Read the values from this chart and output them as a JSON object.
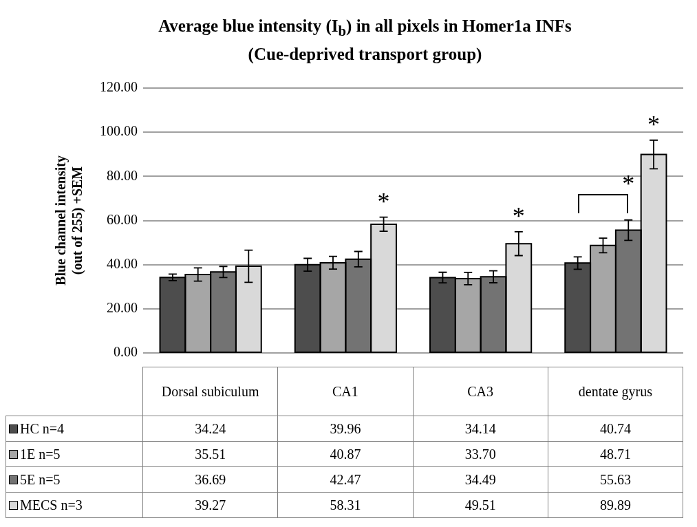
{
  "chart_data": {
    "type": "bar",
    "title": "Average blue intensity (I$_{b}$) in all pixels in Homer1a INFs",
    "subtitle": "(Cue-deprived transport group)",
    "ylabel": "Blue channel intensity (out of 255) +SEM",
    "categories": [
      "Dorsal subiculum",
      "CA1",
      "CA3",
      "dentate gyrus"
    ],
    "series": [
      {
        "name": "HC n=4",
        "color": "#4d4d4d",
        "values": [
          34.24,
          39.96,
          34.14,
          40.74
        ],
        "value_labels": [
          "34.24",
          "39.96",
          "34.14",
          "40.74"
        ],
        "errors": [
          1.5,
          2.9,
          2.4,
          2.8
        ]
      },
      {
        "name": "1E n=5",
        "color": "#a6a6a6",
        "values": [
          35.51,
          40.87,
          33.7,
          48.71
        ],
        "value_labels": [
          "35.51",
          "40.87",
          "33.70",
          "48.71"
        ],
        "errors": [
          3.0,
          2.9,
          2.8,
          3.3
        ]
      },
      {
        "name": "5E n=5",
        "color": "#737373",
        "values": [
          36.69,
          42.47,
          34.49,
          55.63
        ],
        "value_labels": [
          "36.69",
          "42.47",
          "34.49",
          "55.63"
        ],
        "errors": [
          2.5,
          3.5,
          2.7,
          4.6
        ]
      },
      {
        "name": "MECS n=3",
        "color": "#d9d9d9",
        "values": [
          39.27,
          58.31,
          49.51,
          89.89
        ],
        "value_labels": [
          "39.27",
          "58.31",
          "49.51",
          "89.89"
        ],
        "errors": [
          7.3,
          3.2,
          5.4,
          6.5
        ]
      }
    ],
    "ylim": [
      0,
      120
    ],
    "yticks": [
      {
        "value": 0,
        "label": "0.00"
      },
      {
        "value": 20,
        "label": "20.00"
      },
      {
        "value": 40,
        "label": "40.00"
      },
      {
        "value": 60,
        "label": "60.00"
      },
      {
        "value": 80,
        "label": "80.00"
      },
      {
        "value": 100,
        "label": "100.00"
      },
      {
        "value": 120,
        "label": "120.00"
      }
    ],
    "grid": "y",
    "legend": "bottom",
    "annotations": [
      "*",
      "*",
      "*",
      "*"
    ]
  }
}
